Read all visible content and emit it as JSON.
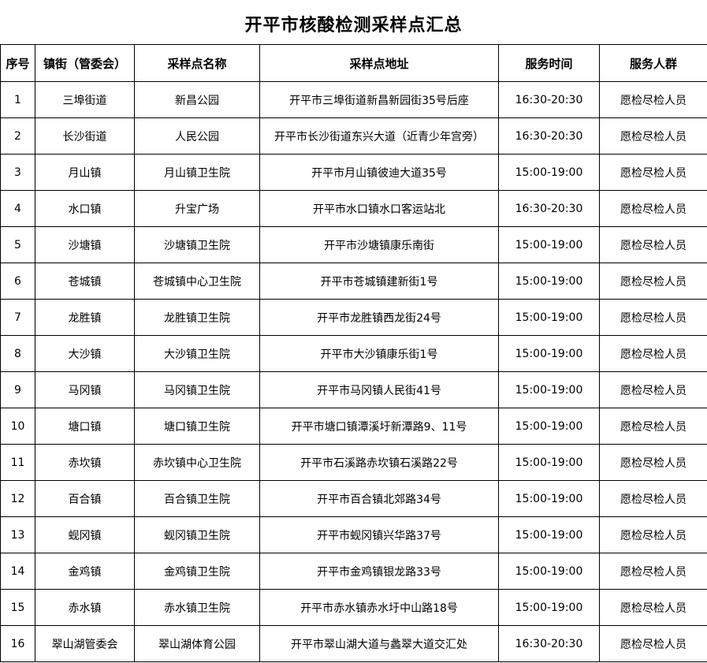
{
  "title": "开平市核酸检测采样点汇总",
  "headers": [
    "序号",
    "镇街（管委会）",
    "采样点名称",
    "采样点地址",
    "服务时间",
    "服务人群"
  ],
  "rows": [
    [
      "1",
      "三埠街道",
      "新昌公园",
      "开平市三埠街道新昌新园街35号后座",
      "16:30-20:30",
      "愿检尽检人员"
    ],
    [
      "2",
      "长沙街道",
      "人民公园",
      "开平市长沙街道东兴大道（近青少年宫旁）",
      "16:30-20:30",
      "愿检尽检人员"
    ],
    [
      "3",
      "月山镇",
      "月山镇卫生院",
      "开平市月山镇彼迪大道35号",
      "15:00-19:00",
      "愿检尽检人员"
    ],
    [
      "4",
      "水口镇",
      "升宝广场",
      "开平市水口镇水口客运站北",
      "16:30-20:30",
      "愿检尽检人员"
    ],
    [
      "5",
      "沙塘镇",
      "沙塘镇卫生院",
      "开平市沙塘镇康乐南街",
      "15:00-19:00",
      "愿检尽检人员"
    ],
    [
      "6",
      "苍城镇",
      "苍城镇中心卫生院",
      "开平市苍城镇建新街1号",
      "15:00-19:00",
      "愿检尽检人员"
    ],
    [
      "7",
      "龙胜镇",
      "龙胜镇卫生院",
      "开平市龙胜镇西龙街24号",
      "15:00-19:00",
      "愿检尽检人员"
    ],
    [
      "8",
      "大沙镇",
      "大沙镇卫生院",
      "开平市大沙镇康乐街1号",
      "15:00-19:00",
      "愿检尽检人员"
    ],
    [
      "9",
      "马冈镇",
      "马冈镇卫生院",
      "开平市马冈镇人民街41号",
      "15:00-19:00",
      "愿检尽检人员"
    ],
    [
      "10",
      "塘口镇",
      "塘口镇卫生院",
      "开平市塘口镇潭溪圩新潭路9、11号",
      "15:00-19:00",
      "愿检尽检人员"
    ],
    [
      "11",
      "赤坎镇",
      "赤坎镇中心卫生院",
      "开平市石溪路赤坎镇石溪路22号",
      "15:00-19:00",
      "愿检尽检人员"
    ],
    [
      "12",
      "百合镇",
      "百合镇卫生院",
      "开平市百合镇北郊路34号",
      "15:00-19:00",
      "愿检尽检人员"
    ],
    [
      "13",
      "蚬冈镇",
      "蚬冈镇卫生院",
      "开平市蚬冈镇兴华路37号",
      "15:00-19:00",
      "愿检尽检人员"
    ],
    [
      "14",
      "金鸡镇",
      "金鸡镇卫生院",
      "开平市金鸡镇银龙路33号",
      "15:00-19:00",
      "愿检尽检人员"
    ],
    [
      "15",
      "赤水镇",
      "赤水镇卫生院",
      "开平市赤水镇赤水圩中山路18号",
      "15:00-19:00",
      "愿检尽检人员"
    ],
    [
      "16",
      "翠山湖管委会",
      "翠山湖体育公园",
      "开平市翠山湖大道与蠡翠大道交汇处",
      "16:30-20:30",
      "愿检尽检人员"
    ]
  ]
}
